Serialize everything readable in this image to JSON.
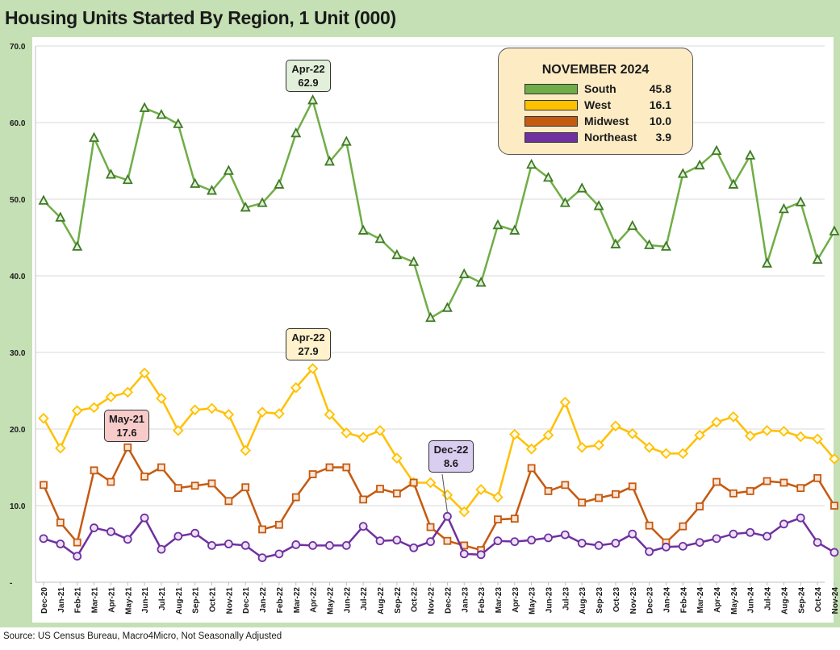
{
  "title": "Housing Units Started By Region, 1 Unit (000)",
  "source": "Source: US Census Bureau, Macro4Micro, Not Seasonally Adjusted",
  "colors": {
    "frame": "#c5e0b4",
    "south": "#70ad47",
    "south_edge": "#3f7a25",
    "west": "#ffc000",
    "west_edge": "#c99a00",
    "midwest": "#c55a11",
    "midwest_edge": "#8a3c08",
    "northeast": "#7030a0",
    "northeast_edge": "#4a1a70",
    "grid": "#d9d9d9"
  },
  "legend": {
    "title": "NOVEMBER 2024",
    "items": [
      {
        "name": "South",
        "value": "45.8",
        "color": "#70ad47"
      },
      {
        "name": "West",
        "value": "16.1",
        "color": "#ffc000"
      },
      {
        "name": "Midwest",
        "value": "10.0",
        "color": "#c55a11"
      },
      {
        "name": "Northeast",
        "value": "3.9",
        "color": "#7030a0"
      }
    ]
  },
  "callouts": [
    {
      "label": "Apr-22",
      "value": "62.9",
      "fill": "#e2efda"
    },
    {
      "label": "Apr-22",
      "value": "27.9",
      "fill": "#fff2cc"
    },
    {
      "label": "May-21",
      "value": "17.6",
      "fill": "#f8cbcb"
    },
    {
      "label": "Dec-22",
      "value": "8.6",
      "fill": "#d9cdf0"
    }
  ],
  "chart_data": {
    "type": "line",
    "title": "Housing Units Started By Region, 1 Unit (000)",
    "xlabel": "",
    "ylabel": "",
    "ylim": [
      0,
      70
    ],
    "yticks": [
      0,
      10,
      20,
      30,
      40,
      50,
      60,
      70
    ],
    "ytick_labels": [
      "-",
      "10.0",
      "20.0",
      "30.0",
      "40.0",
      "50.0",
      "60.0",
      "70.0"
    ],
    "grid": true,
    "categories": [
      "Dec-20",
      "Jan-21",
      "Feb-21",
      "Mar-21",
      "Apr-21",
      "May-21",
      "Jun-21",
      "Jul-21",
      "Aug-21",
      "Sep-21",
      "Oct-21",
      "Nov-21",
      "Dec-21",
      "Jan-22",
      "Feb-22",
      "Mar-22",
      "Apr-22",
      "May-22",
      "Jun-22",
      "Jul-22",
      "Aug-22",
      "Sep-22",
      "Oct-22",
      "Nov-22",
      "Dec-22",
      "Jan-23",
      "Feb-23",
      "Mar-23",
      "Apr-23",
      "May-23",
      "Jun-23",
      "Jul-23",
      "Aug-23",
      "Sep-23",
      "Oct-23",
      "Nov-23",
      "Dec-23",
      "Jan-24",
      "Feb-24",
      "Mar-24",
      "Apr-24",
      "May-24",
      "Jun-24",
      "Jul-24",
      "Aug-24",
      "Sep-24",
      "Oct-24",
      "Nov-24"
    ],
    "series": [
      {
        "name": "South",
        "marker": "triangle",
        "values": [
          49.8,
          47.6,
          43.8,
          58.0,
          53.2,
          52.5,
          61.9,
          61.0,
          59.8,
          52.0,
          51.1,
          53.7,
          48.9,
          49.5,
          51.9,
          58.6,
          62.9,
          54.9,
          57.5,
          45.9,
          44.8,
          42.7,
          41.8,
          34.5,
          35.8,
          40.2,
          39.1,
          46.6,
          45.9,
          54.5,
          52.8,
          49.5,
          51.4,
          49.1,
          44.1,
          46.5,
          44.0,
          43.8,
          53.3,
          54.4,
          56.3,
          51.9,
          55.7,
          41.6,
          48.7,
          49.6,
          42.1,
          45.8
        ]
      },
      {
        "name": "West",
        "marker": "diamond",
        "values": [
          21.4,
          17.5,
          22.4,
          22.8,
          24.2,
          24.8,
          27.3,
          24.0,
          19.8,
          22.5,
          22.7,
          21.9,
          17.2,
          22.2,
          22.0,
          25.4,
          27.9,
          21.9,
          19.5,
          18.9,
          19.8,
          16.2,
          13.0,
          13.0,
          11.4,
          9.2,
          12.1,
          11.1,
          19.3,
          17.4,
          19.2,
          23.5,
          17.6,
          17.9,
          20.4,
          19.4,
          17.6,
          16.8,
          16.8,
          19.2,
          20.9,
          21.6,
          19.1,
          19.8,
          19.7,
          19.0,
          18.7,
          16.1
        ]
      },
      {
        "name": "Midwest",
        "marker": "square",
        "values": [
          12.7,
          7.8,
          5.2,
          14.6,
          13.1,
          17.6,
          13.8,
          15.0,
          12.3,
          12.6,
          12.9,
          10.6,
          12.4,
          6.9,
          7.5,
          11.1,
          14.1,
          15.0,
          15.0,
          10.8,
          12.2,
          11.6,
          13.0,
          7.2,
          5.4,
          4.8,
          4.2,
          8.2,
          8.3,
          14.9,
          11.9,
          12.7,
          10.4,
          11.0,
          11.5,
          12.5,
          7.4,
          5.2,
          7.3,
          9.9,
          13.1,
          11.6,
          11.9,
          13.2,
          13.0,
          12.3,
          13.6,
          10.0
        ]
      },
      {
        "name": "Northeast",
        "marker": "circle",
        "values": [
          5.7,
          5.0,
          3.4,
          7.1,
          6.6,
          5.6,
          8.4,
          4.3,
          6.0,
          6.4,
          4.8,
          5.0,
          4.8,
          3.2,
          3.7,
          4.9,
          4.8,
          4.8,
          4.8,
          7.3,
          5.4,
          5.5,
          4.5,
          5.3,
          8.6,
          3.7,
          3.6,
          5.4,
          5.3,
          5.5,
          5.8,
          6.2,
          5.1,
          4.8,
          5.1,
          6.3,
          4.0,
          4.6,
          4.7,
          5.2,
          5.7,
          6.3,
          6.5,
          6.0,
          7.6,
          8.4,
          5.2,
          3.9
        ]
      }
    ]
  }
}
